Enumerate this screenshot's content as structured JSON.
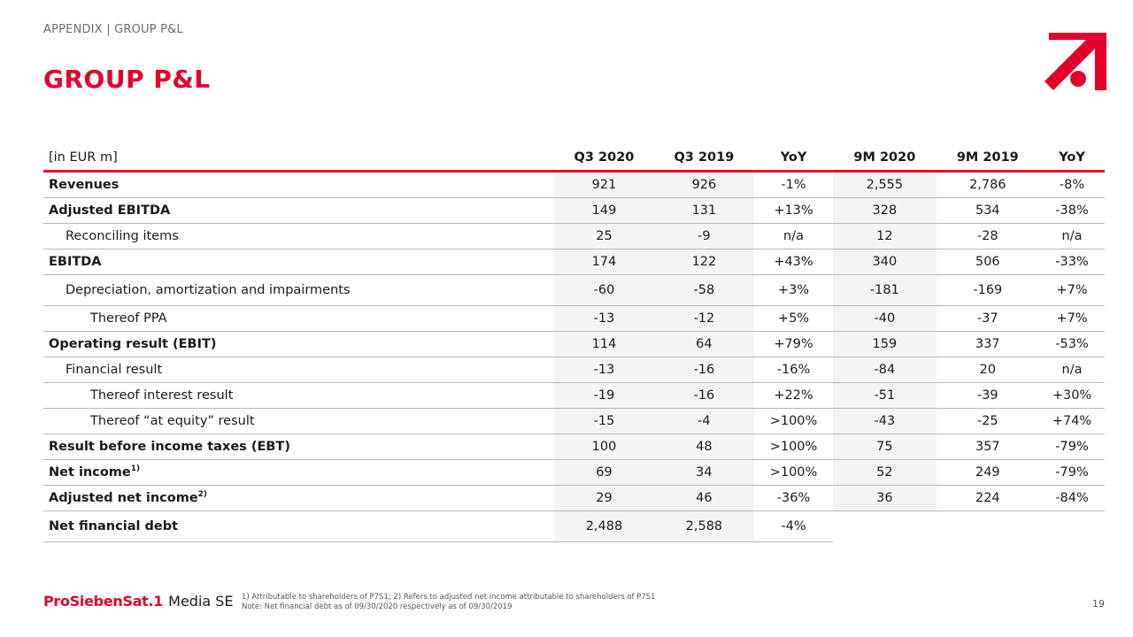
{
  "header": {
    "breadcrumb": "APPENDIX | GROUP P&L",
    "title": "GROUP P&L",
    "brand_color": "#e4002b"
  },
  "table": {
    "columns": [
      "[in EUR m]",
      "Q3 2020",
      "Q3 2019",
      "YoY",
      "9M 2020",
      "9M 2019",
      "YoY"
    ],
    "rows": [
      {
        "label": "Revenues",
        "values": [
          "921",
          "926",
          "-1%",
          "2,555",
          "2,786",
          "-8%"
        ]
      },
      {
        "label": "Adjusted EBITDA",
        "values": [
          "149",
          "131",
          "+13%",
          "328",
          "534",
          "-38%"
        ]
      },
      {
        "label": "Reconciling items",
        "values": [
          "25",
          "-9",
          "n/a",
          "12",
          "-28",
          "n/a"
        ]
      },
      {
        "label": "EBITDA",
        "values": [
          "174",
          "122",
          "+43%",
          "340",
          "506",
          "-33%"
        ]
      },
      {
        "label": "Depreciation, amortization and impairments",
        "values": [
          "-60",
          "-58",
          "+3%",
          "-181",
          "-169",
          "+7%"
        ]
      },
      {
        "label": "Thereof PPA",
        "values": [
          "-13",
          "-12",
          "+5%",
          "-40",
          "-37",
          "+7%"
        ]
      },
      {
        "label": "Operating result (EBIT)",
        "values": [
          "114",
          "64",
          "+79%",
          "159",
          "337",
          "-53%"
        ]
      },
      {
        "label": "Financial result",
        "values": [
          "-13",
          "-16",
          "-16%",
          "-84",
          "20",
          "n/a"
        ]
      },
      {
        "label": "Thereof interest result",
        "values": [
          "-19",
          "-16",
          "+22%",
          "-51",
          "-39",
          "+30%"
        ]
      },
      {
        "label": "Thereof “at equity” result",
        "values": [
          "-15",
          "-4",
          ">100%",
          "-43",
          "-25",
          "+74%"
        ]
      },
      {
        "label": "Result before income taxes (EBT)",
        "values": [
          "100",
          "48",
          ">100%",
          "75",
          "357",
          "-79%"
        ]
      },
      {
        "label": "Net income",
        "sup": "1)",
        "values": [
          "69",
          "34",
          ">100%",
          "52",
          "249",
          "-79%"
        ]
      },
      {
        "label": "Adjusted net income",
        "sup": "2)",
        "values": [
          "29",
          "46",
          "-36%",
          "36",
          "224",
          "-84%"
        ]
      },
      {
        "label": "Net financial debt",
        "values": [
          "2,488",
          "2,588",
          "-4%"
        ]
      }
    ]
  },
  "footer": {
    "brand_name": "ProSiebenSat.1",
    "brand_suffix": "Media SE",
    "footnote_1": "1) Attributable to shareholders of P7S1; 2) Refers to adjusted net income attributable to shareholders of P7S1",
    "footnote_2": "Note: Net financial debt as of 09/30/2020 respectively as of 09/30/2019",
    "page_number": "19"
  }
}
